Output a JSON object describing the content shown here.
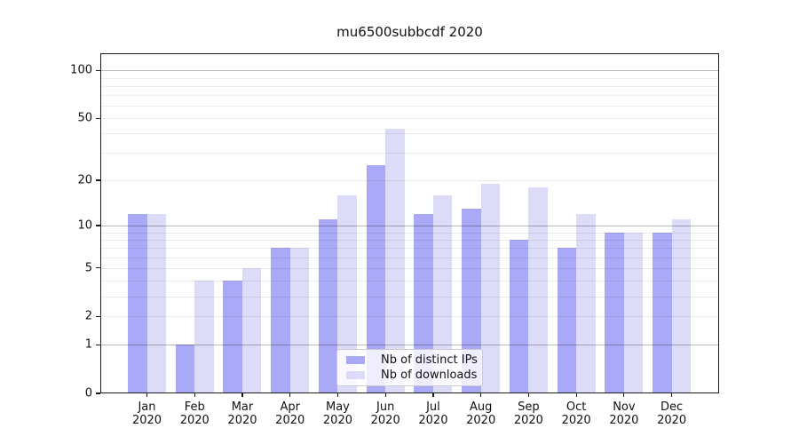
{
  "title": "mu6500subbcdf 2020",
  "chart_data": {
    "type": "bar",
    "categories": [
      "Jan",
      "Feb",
      "Mar",
      "Apr",
      "May",
      "Jun",
      "Jul",
      "Aug",
      "Sep",
      "Oct",
      "Nov",
      "Dec"
    ],
    "category_year": "2020",
    "series": [
      {
        "name": "Nb of distinct IPs",
        "color": "#a9a9f7",
        "values": [
          12,
          1,
          4,
          7,
          11,
          25,
          12,
          13,
          8,
          7,
          9,
          9
        ]
      },
      {
        "name": "Nb of downloads",
        "color": "#dcdcf9",
        "values": [
          12,
          4,
          5,
          7,
          16,
          43,
          16,
          19,
          18,
          12,
          9,
          11
        ]
      }
    ],
    "title": "mu6500subbcdf 2020",
    "xlabel": "",
    "ylabel": "",
    "yscale": "log1p",
    "ylim": [
      0,
      128
    ],
    "ytick_values": [
      100,
      50,
      20,
      10,
      5,
      2,
      1,
      0
    ],
    "grid_major": [
      1,
      10,
      100
    ],
    "grid_minor": [
      2,
      3,
      4,
      5,
      6,
      7,
      8,
      9,
      20,
      30,
      40,
      50,
      60,
      70,
      80,
      90
    ],
    "grid": "on",
    "legend_position": "lower center"
  },
  "colors": {
    "background": "#ffffff",
    "spine": "#1a1a1a",
    "series_ips": "#a9a9f7",
    "series_downloads": "#dcdcf9"
  }
}
